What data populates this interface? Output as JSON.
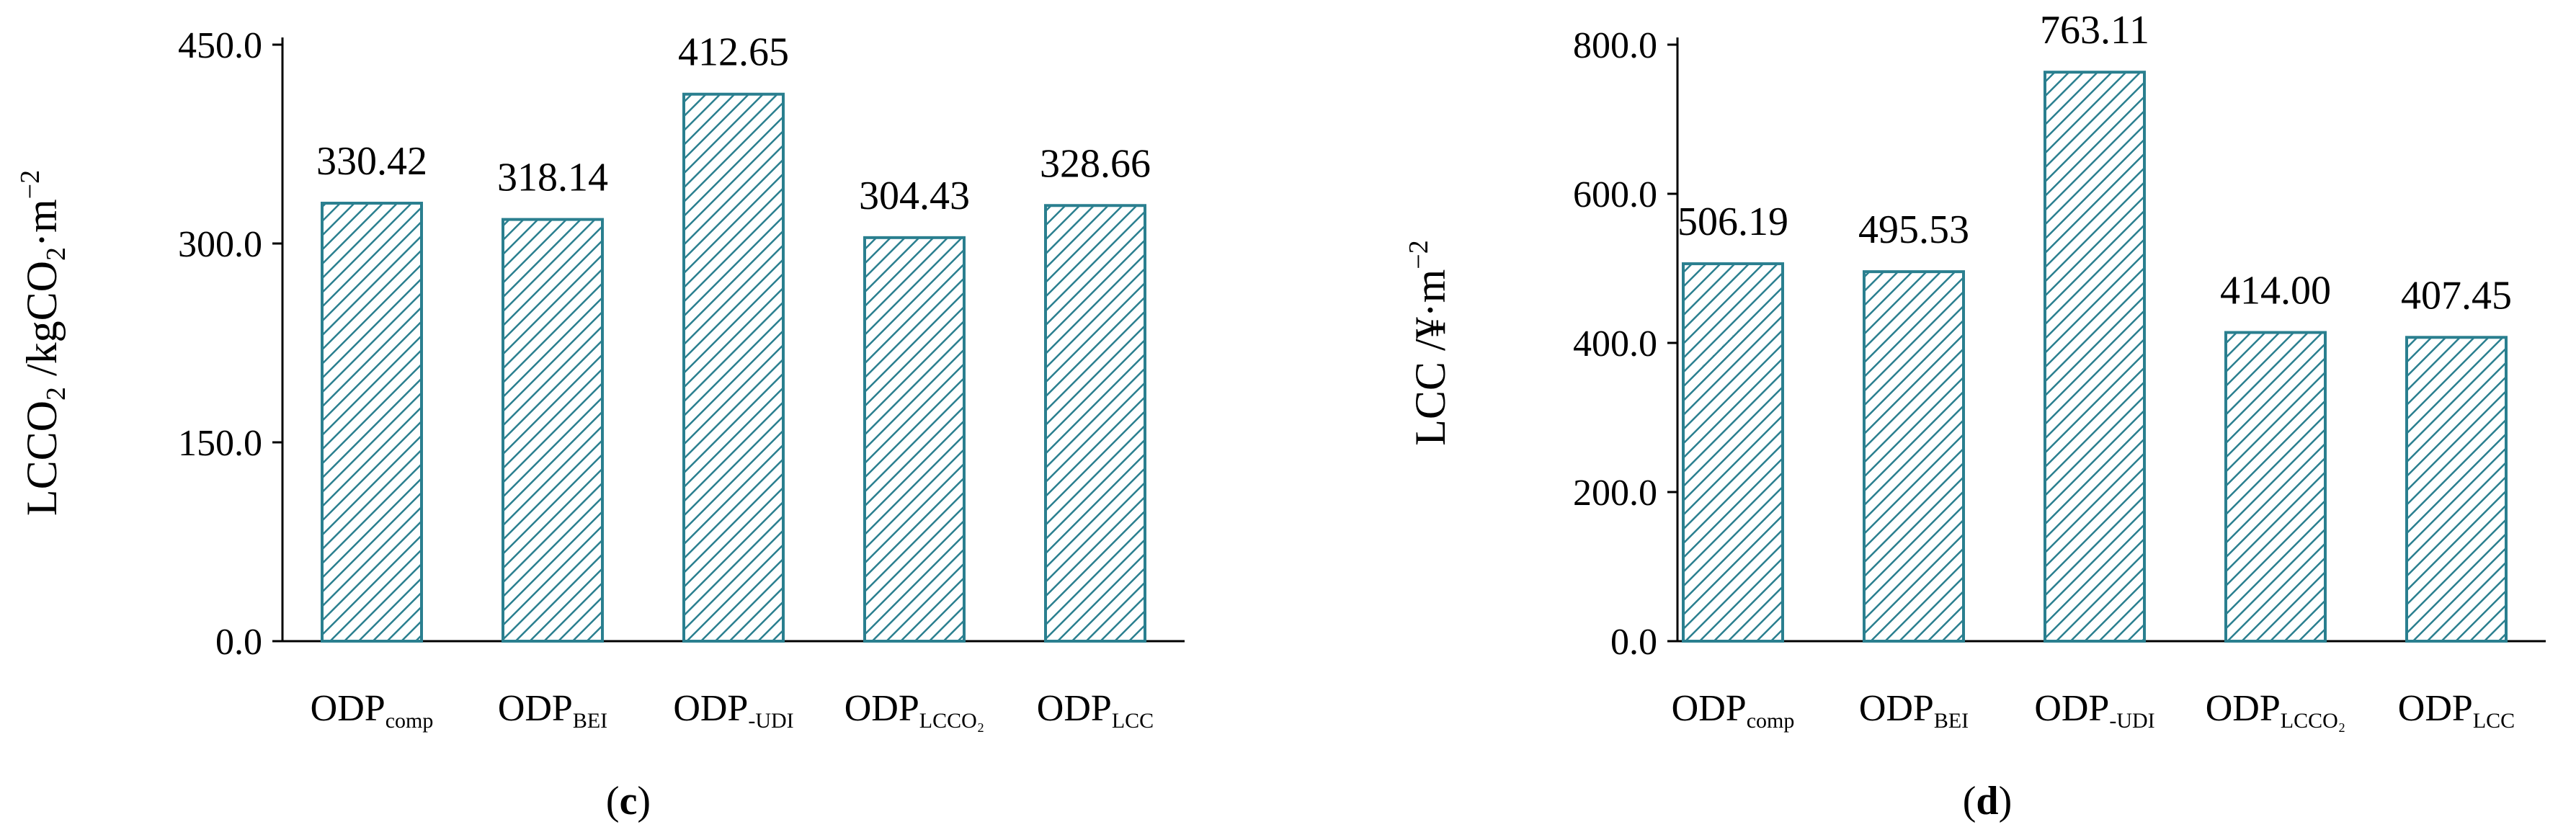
{
  "colors": {
    "bar_stroke": "#2a7f8f",
    "hatch": "#2a7f8f"
  },
  "chart_data": [
    {
      "type": "bar",
      "panel_label": "c",
      "categories": [
        {
          "base": "ODP",
          "sub": "comp"
        },
        {
          "base": "ODP",
          "sub": "BEI"
        },
        {
          "base": "ODP",
          "sub": "-UDI"
        },
        {
          "base": "ODP",
          "sub": "LCCO₂"
        },
        {
          "base": "ODP",
          "sub": "LCC"
        }
      ],
      "values": [
        330.42,
        318.14,
        412.65,
        304.43,
        328.66
      ],
      "value_labels": [
        "330.42",
        "318.14",
        "412.65",
        "304.43",
        "328.66"
      ],
      "yticks": [
        0,
        150,
        300,
        450
      ],
      "ytick_labels": [
        "0.0",
        "150.0",
        "300.0",
        "450.0"
      ],
      "ylim": [
        0,
        450
      ],
      "ylabel": {
        "main": "LCCO",
        "sub1": "2",
        "mid": " /kgCO",
        "sub2": "2",
        "tail": "·m",
        "sup": "−2"
      }
    },
    {
      "type": "bar",
      "panel_label": "d",
      "categories": [
        {
          "base": "ODP",
          "sub": "comp"
        },
        {
          "base": "ODP",
          "sub": "BEI"
        },
        {
          "base": "ODP",
          "sub": "-UDI"
        },
        {
          "base": "ODP",
          "sub": "LCCO₂"
        },
        {
          "base": "ODP",
          "sub": "LCC"
        }
      ],
      "values": [
        506.19,
        495.53,
        763.11,
        414.0,
        407.45
      ],
      "value_labels": [
        "506.19",
        "495.53",
        "763.11",
        "414.00",
        "407.45"
      ],
      "yticks": [
        0,
        200,
        400,
        600,
        800
      ],
      "ytick_labels": [
        "0.0",
        "200.0",
        "400.0",
        "600.0",
        "800.0"
      ],
      "ylim": [
        0,
        800
      ],
      "ylabel": {
        "main": "LCC /¥·m",
        "sup": "−2"
      }
    }
  ]
}
